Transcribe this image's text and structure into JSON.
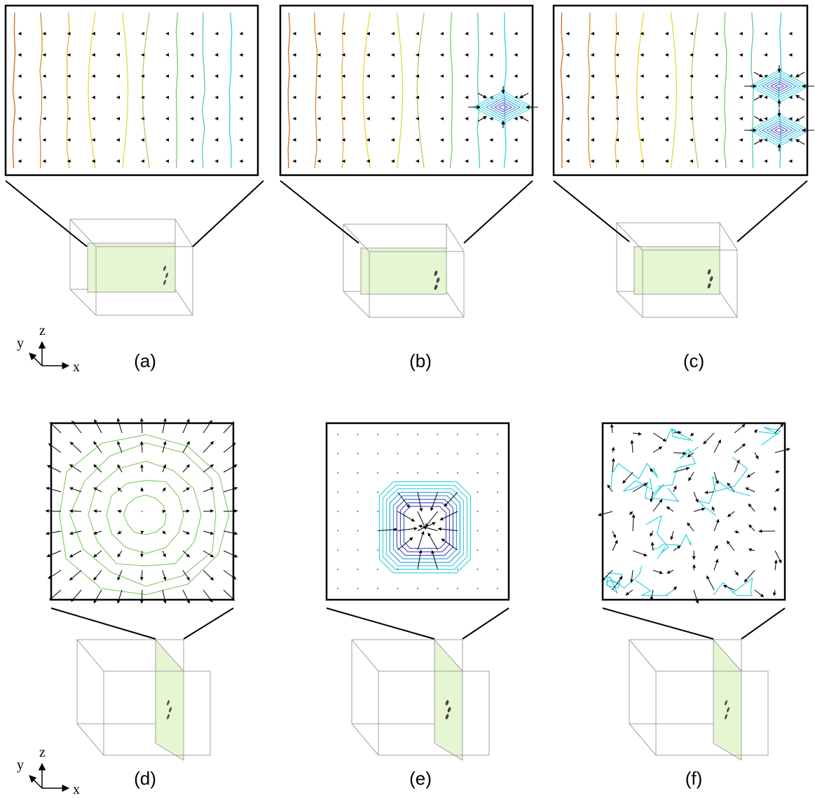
{
  "figure": {
    "panels": [
      {
        "id": "a",
        "caption": "(a)",
        "slice": "xz",
        "field": "uniform",
        "defect": "none",
        "contour_colors": [
          "#d2691e",
          "#e08a2a",
          "#e3b23c",
          "#e8d830",
          "#d8e040",
          "#a8d060",
          "#7cc870",
          "#58c8a8",
          "#30d0e0"
        ]
      },
      {
        "id": "b",
        "caption": "(b)",
        "slice": "xz",
        "field": "uniform",
        "defect": "single-sink",
        "contour_colors": [
          "#d2691e",
          "#e08a2a",
          "#e3b23c",
          "#e8d830",
          "#d8e040",
          "#a8d060",
          "#7cc870",
          "#58c8a8",
          "#30d0e0"
        ]
      },
      {
        "id": "c",
        "caption": "(c)",
        "slice": "xz",
        "field": "uniform",
        "defect": "double-sink",
        "contour_colors": [
          "#d2691e",
          "#e08a2a",
          "#e3b23c",
          "#e8d830",
          "#d8e040",
          "#a8d060",
          "#7cc870",
          "#58c8a8",
          "#30d0e0"
        ]
      },
      {
        "id": "d",
        "caption": "(d)",
        "slice": "yz",
        "field": "rings",
        "defect": "none",
        "contour_colors": [
          "#7cc860"
        ]
      },
      {
        "id": "e",
        "caption": "(e)",
        "slice": "yz",
        "field": "octagon-sink",
        "defect": "sink",
        "contour_colors": [
          "#30d0e0",
          "#2a9ad8",
          "#3b48c8"
        ]
      },
      {
        "id": "f",
        "caption": "(f)",
        "slice": "yz",
        "field": "turbulent",
        "defect": "none",
        "contour_colors": [
          "#30d0e0"
        ]
      }
    ],
    "axes": {
      "x": "x",
      "y": "y",
      "z": "z"
    },
    "slice_color": "#e6f5d2",
    "box_color": "#a0a0a0",
    "frame_color": "#000000"
  }
}
